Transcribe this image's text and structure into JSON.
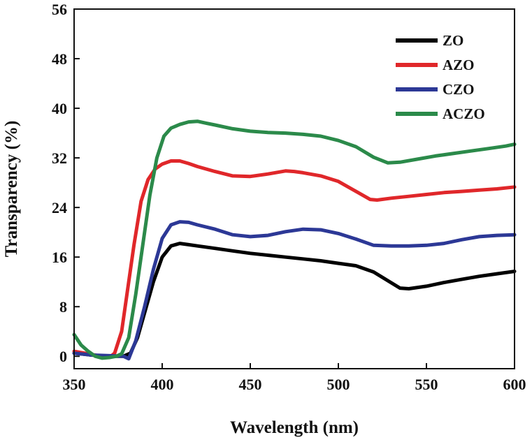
{
  "chart_data": {
    "type": "line",
    "title": "",
    "xlabel": "Wavelength (nm)",
    "ylabel": "Transparency (%)",
    "xlim": [
      350,
      600
    ],
    "ylim": [
      -2,
      56
    ],
    "xticks": [
      350,
      400,
      450,
      500,
      550,
      600
    ],
    "yticks": [
      0,
      8,
      16,
      24,
      32,
      40,
      48,
      56
    ],
    "legend_position": "top-right",
    "series": [
      {
        "name": "ZO",
        "color": "#000000",
        "points": [
          [
            350,
            0.5
          ],
          [
            360,
            0.2
          ],
          [
            370,
            0.0
          ],
          [
            378,
            0.0
          ],
          [
            382,
            0.5
          ],
          [
            386,
            3
          ],
          [
            390,
            7
          ],
          [
            395,
            12
          ],
          [
            400,
            16
          ],
          [
            405,
            17.8
          ],
          [
            410,
            18.2
          ],
          [
            415,
            18.0
          ],
          [
            420,
            17.8
          ],
          [
            430,
            17.4
          ],
          [
            440,
            17.0
          ],
          [
            450,
            16.6
          ],
          [
            460,
            16.3
          ],
          [
            470,
            16.0
          ],
          [
            480,
            15.7
          ],
          [
            490,
            15.4
          ],
          [
            500,
            15.0
          ],
          [
            510,
            14.6
          ],
          [
            520,
            13.6
          ],
          [
            528,
            12.2
          ],
          [
            535,
            11.0
          ],
          [
            540,
            10.9
          ],
          [
            550,
            11.3
          ],
          [
            560,
            11.9
          ],
          [
            570,
            12.4
          ],
          [
            580,
            12.9
          ],
          [
            590,
            13.3
          ],
          [
            600,
            13.7
          ]
        ]
      },
      {
        "name": "AZO",
        "color": "#e0272a",
        "points": [
          [
            350,
            0.8
          ],
          [
            360,
            0.3
          ],
          [
            365,
            0.0
          ],
          [
            370,
            -0.2
          ],
          [
            373,
            0.5
          ],
          [
            377,
            4
          ],
          [
            380,
            10
          ],
          [
            384,
            18
          ],
          [
            388,
            25
          ],
          [
            392,
            28.5
          ],
          [
            396,
            30.2
          ],
          [
            400,
            31.0
          ],
          [
            405,
            31.5
          ],
          [
            410,
            31.5
          ],
          [
            415,
            31.1
          ],
          [
            420,
            30.6
          ],
          [
            430,
            29.8
          ],
          [
            440,
            29.1
          ],
          [
            450,
            29.0
          ],
          [
            460,
            29.4
          ],
          [
            470,
            29.9
          ],
          [
            475,
            29.8
          ],
          [
            480,
            29.6
          ],
          [
            490,
            29.1
          ],
          [
            500,
            28.2
          ],
          [
            510,
            26.6
          ],
          [
            518,
            25.3
          ],
          [
            522,
            25.2
          ],
          [
            530,
            25.5
          ],
          [
            540,
            25.8
          ],
          [
            550,
            26.1
          ],
          [
            560,
            26.4
          ],
          [
            570,
            26.6
          ],
          [
            580,
            26.8
          ],
          [
            590,
            27.0
          ],
          [
            600,
            27.3
          ]
        ]
      },
      {
        "name": "CZO",
        "color": "#2c3896",
        "points": [
          [
            350,
            0.5
          ],
          [
            360,
            0.2
          ],
          [
            370,
            0.1
          ],
          [
            378,
            0.0
          ],
          [
            381,
            -0.4
          ],
          [
            385,
            2.5
          ],
          [
            390,
            8
          ],
          [
            395,
            14
          ],
          [
            400,
            19
          ],
          [
            405,
            21.2
          ],
          [
            410,
            21.7
          ],
          [
            415,
            21.6
          ],
          [
            420,
            21.2
          ],
          [
            430,
            20.5
          ],
          [
            440,
            19.6
          ],
          [
            450,
            19.3
          ],
          [
            460,
            19.5
          ],
          [
            470,
            20.1
          ],
          [
            480,
            20.5
          ],
          [
            490,
            20.4
          ],
          [
            500,
            19.8
          ],
          [
            510,
            18.9
          ],
          [
            520,
            17.9
          ],
          [
            530,
            17.8
          ],
          [
            540,
            17.8
          ],
          [
            550,
            17.9
          ],
          [
            560,
            18.2
          ],
          [
            570,
            18.8
          ],
          [
            580,
            19.3
          ],
          [
            590,
            19.5
          ],
          [
            600,
            19.6
          ]
        ]
      },
      {
        "name": "ACZO",
        "color": "#2b8a4a",
        "points": [
          [
            350,
            3.5
          ],
          [
            354,
            1.8
          ],
          [
            358,
            0.8
          ],
          [
            362,
            0.0
          ],
          [
            366,
            -0.3
          ],
          [
            370,
            -0.2
          ],
          [
            374,
            0.0
          ],
          [
            377,
            0.4
          ],
          [
            381,
            3
          ],
          [
            385,
            10
          ],
          [
            389,
            18
          ],
          [
            393,
            26
          ],
          [
            397,
            32
          ],
          [
            401,
            35.5
          ],
          [
            405,
            36.8
          ],
          [
            410,
            37.4
          ],
          [
            415,
            37.8
          ],
          [
            420,
            37.9
          ],
          [
            425,
            37.6
          ],
          [
            430,
            37.3
          ],
          [
            440,
            36.7
          ],
          [
            450,
            36.3
          ],
          [
            460,
            36.1
          ],
          [
            470,
            36.0
          ],
          [
            480,
            35.8
          ],
          [
            490,
            35.5
          ],
          [
            500,
            34.8
          ],
          [
            510,
            33.8
          ],
          [
            520,
            32.1
          ],
          [
            528,
            31.2
          ],
          [
            535,
            31.3
          ],
          [
            545,
            31.8
          ],
          [
            555,
            32.3
          ],
          [
            565,
            32.7
          ],
          [
            575,
            33.1
          ],
          [
            585,
            33.5
          ],
          [
            595,
            33.9
          ],
          [
            600,
            34.2
          ]
        ]
      }
    ]
  }
}
